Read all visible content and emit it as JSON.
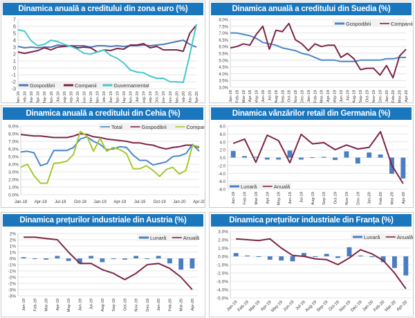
{
  "chart_data": [
    {
      "id": "euro",
      "type": "line",
      "title": "Dinamica anuală a creditului din zona euro (%)",
      "xlabel": "",
      "ylabel": "",
      "ylim": [
        -3,
        7
      ],
      "yticks": [
        7,
        6,
        5,
        4,
        3,
        2,
        1,
        0,
        -1,
        -2,
        -3
      ],
      "ytick_labels": [
        "7",
        "6",
        "5",
        "4",
        "3",
        "2",
        "1",
        "0",
        "-1",
        "-2",
        "-3"
      ],
      "grid": true,
      "legend": "bottom-left",
      "categories": [
        "Jan-18",
        "Feb-18",
        "Mar-18",
        "Apr-18",
        "May-18",
        "Jun-18",
        "Jul-18",
        "Aug-18",
        "Sep-18",
        "Oct-18",
        "Nov-18",
        "Dec-18",
        "Jan-19",
        "Feb-19",
        "Mar-19",
        "Apr-19",
        "May-19",
        "Jun-19",
        "Jul-19",
        "Aug-19",
        "Sep-19",
        "Oct-19",
        "Nov-19",
        "Dec-19",
        "Jan-20",
        "Feb-20",
        "Mar-20",
        "Apr-20"
      ],
      "series": [
        {
          "name": "Gospodării",
          "color": "#4a78b8",
          "values": [
            3.1,
            2.9,
            3.0,
            2.9,
            3.0,
            3.0,
            3.3,
            3.2,
            3.2,
            3.2,
            3.2,
            3.0,
            3.2,
            3.2,
            3.1,
            3.2,
            3.1,
            3.2,
            3.2,
            3.3,
            3.2,
            3.3,
            3.4,
            3.6,
            3.8,
            4.0,
            3.4,
            3.0
          ]
        },
        {
          "name": "Companii",
          "color": "#7b2346",
          "values": [
            2.3,
            2.1,
            2.3,
            2.5,
            2.9,
            2.6,
            3.0,
            3.1,
            3.2,
            2.9,
            3.0,
            2.9,
            2.3,
            2.6,
            2.5,
            2.8,
            2.7,
            3.3,
            3.3,
            3.5,
            2.9,
            3.1,
            2.6,
            2.6,
            2.6,
            2.4,
            5.0,
            6.2
          ]
        },
        {
          "name": "Guvernamental",
          "color": "#45c8c8",
          "values": [
            5.5,
            5.3,
            3.9,
            3.2,
            3.4,
            4.0,
            3.8,
            3.4,
            3.1,
            2.7,
            2.1,
            2.0,
            2.3,
            2.6,
            1.8,
            1.4,
            0.7,
            -0.3,
            -0.6,
            -0.7,
            -1.2,
            -1.5,
            -1.5,
            -2.0,
            -2.0,
            -2.1,
            1.9,
            6.3
          ]
        }
      ]
    },
    {
      "id": "suedia",
      "type": "line",
      "title": "Dinamica anuală a creditului din Suedia (%)",
      "xlabel": "",
      "ylabel": "",
      "ylim": [
        3.0,
        8.0
      ],
      "yticks": [
        8.0,
        7.5,
        7.0,
        6.5,
        6.0,
        5.5,
        5.0,
        4.5,
        4.0,
        3.5,
        3.0
      ],
      "ytick_labels": [
        "8.0%",
        "7.5%",
        "7.0%",
        "6.5%",
        "6.0%",
        "5.5%",
        "5.0%",
        "4.5%",
        "4.0%",
        "3.5%",
        "3.0%"
      ],
      "grid": true,
      "legend": "top-right",
      "categories": [
        "Jan-18",
        "Feb-18",
        "Mar-18",
        "Apr-18",
        "May-18",
        "Jun-18",
        "Jul-18",
        "Aug-18",
        "Sep-18",
        "Oct-18",
        "Nov-18",
        "Dec-18",
        "Jan-19",
        "Feb-19",
        "Mar-19",
        "Apr-19",
        "May-19",
        "Jun-19",
        "Jul-19",
        "Aug-19",
        "Sep-19",
        "Oct-19",
        "Nov-19",
        "Dec-19",
        "Jan-20",
        "Feb-20",
        "Mar-20",
        "Apr-20"
      ],
      "series": [
        {
          "name": "Gospodării",
          "color": "#4a86c8",
          "values": [
            7.0,
            7.0,
            6.9,
            6.8,
            6.6,
            6.3,
            6.2,
            6.1,
            5.9,
            5.8,
            5.7,
            5.5,
            5.4,
            5.2,
            5.0,
            5.0,
            5.0,
            4.9,
            4.9,
            4.9,
            5.0,
            5.0,
            5.0,
            5.0,
            5.1,
            5.1,
            5.2,
            5.2
          ]
        },
        {
          "name": "Companii",
          "color": "#7b2346",
          "values": [
            5.9,
            6.0,
            6.2,
            6.1,
            6.9,
            7.5,
            5.8,
            7.2,
            7.1,
            7.7,
            6.5,
            6.2,
            5.7,
            6.2,
            6.0,
            6.1,
            6.1,
            5.2,
            5.5,
            5.1,
            4.3,
            4.4,
            4.4,
            3.9,
            4.6,
            3.7,
            5.3,
            5.8
          ]
        }
      ]
    },
    {
      "id": "cehia",
      "type": "line",
      "title": "Dinamica anuală a creditului din Cehia (%)",
      "xlabel": "",
      "ylabel": "",
      "ylim": [
        0.0,
        9.0
      ],
      "yticks": [
        9,
        8,
        7,
        6,
        5,
        4,
        3,
        2,
        1,
        0
      ],
      "ytick_labels": [
        "9.0%",
        "8.0%",
        "7.0%",
        "6.0%",
        "5.0%",
        "4.0%",
        "3.0%",
        "2.0%",
        "1.0%",
        "0.0%"
      ],
      "grid": true,
      "legend": "top-right",
      "categories": [
        "Jan-18",
        "Feb-18",
        "Mar-18",
        "Apr-18",
        "May-18",
        "Jun-18",
        "Jul-18",
        "Aug-18",
        "Sep-18",
        "Oct-18",
        "Nov-18",
        "Dec-18",
        "Jan-19",
        "Feb-19",
        "Mar-19",
        "Apr-19",
        "May-19",
        "Jun-19",
        "Jul-19",
        "Aug-19",
        "Sep-19",
        "Oct-19",
        "Nov-19",
        "Dec-19",
        "Jan-20",
        "Feb-20",
        "Mar-20",
        "Apr-20"
      ],
      "xtick_labels": [
        "Jan-18",
        "",
        "",
        "Apr-18",
        "",
        "",
        "Jul-18",
        "",
        "",
        "Oct-18",
        "",
        "",
        "Jan-19",
        "",
        "",
        "Apr-19",
        "",
        "",
        "Jul-19",
        "",
        "",
        "Oct-19",
        "",
        "",
        "Jan-20",
        "",
        "",
        "Apr-20"
      ],
      "series": [
        {
          "name": "Total",
          "color": "#4a86c8",
          "values": [
            5.6,
            5.7,
            5.5,
            3.8,
            4.1,
            5.8,
            5.8,
            5.8,
            6.2,
            7.3,
            7.6,
            7.0,
            6.6,
            5.9,
            6.0,
            6.3,
            6.2,
            5.2,
            4.5,
            4.5,
            3.9,
            4.1,
            4.3,
            5.0,
            5.1,
            5.4,
            6.6,
            5.7
          ]
        },
        {
          "name": "Gospodării",
          "color": "#7b2346",
          "values": [
            7.9,
            7.8,
            7.7,
            7.7,
            7.6,
            7.5,
            7.5,
            7.5,
            7.7,
            8.0,
            7.9,
            7.6,
            7.5,
            7.3,
            7.2,
            7.1,
            7.0,
            6.8,
            6.8,
            6.6,
            6.5,
            6.2,
            6.0,
            6.2,
            6.3,
            6.5,
            6.5,
            6.2
          ]
        },
        {
          "name": "Companii",
          "color": "#a4c82e",
          "values": [
            3.6,
            4.0,
            2.5,
            1.5,
            1.5,
            4.1,
            4.2,
            4.4,
            5.3,
            8.3,
            7.7,
            5.7,
            7.4,
            5.7,
            6.2,
            5.9,
            5.4,
            3.4,
            3.4,
            3.8,
            3.2,
            2.4,
            3.3,
            3.6,
            2.7,
            3.2,
            6.5,
            6.3
          ]
        }
      ]
    },
    {
      "id": "germania",
      "type": "bar+line",
      "title": "Dinamica vânzărilor retail din Germania (%)",
      "xlabel": "",
      "ylabel": "",
      "ylim": [
        -8.0,
        8.0
      ],
      "yticks": [
        8,
        6,
        4,
        2,
        0,
        -2,
        -4,
        -6,
        -8
      ],
      "ytick_labels": [
        "8.0",
        "6.0",
        "4.0",
        "2.0",
        "0.0",
        "-2.0",
        "-4.0",
        "-6.0",
        "-8.0"
      ],
      "grid": true,
      "legend": "bottom-left",
      "categories": [
        "Jan-19",
        "Feb-19",
        "Mar-19",
        "Apr-19",
        "May-19",
        "Jun-19",
        "Jul-19",
        "Aug-19",
        "Sep-19",
        "Oct-19",
        "Nov-19",
        "Dec-19",
        "Jan-20",
        "Feb-20",
        "Mar-20",
        "Apr-20"
      ],
      "series": [
        {
          "name": "Lunară",
          "kind": "bar",
          "color": "#4a7ec0",
          "values": [
            1.7,
            0.4,
            0.2,
            -0.5,
            -0.5,
            1.8,
            -0.5,
            0.1,
            0.2,
            -0.6,
            1.6,
            -1.5,
            1.3,
            0.8,
            -4.1,
            -5.3
          ]
        },
        {
          "name": "Anuală",
          "kind": "line",
          "color": "#7b2346",
          "values": [
            3.6,
            4.7,
            -1.2,
            5.7,
            4.3,
            -1.3,
            5.9,
            3.5,
            3.8,
            2.0,
            3.2,
            2.2,
            2.6,
            6.6,
            -1.9,
            -6.6
          ]
        }
      ]
    },
    {
      "id": "austria",
      "type": "bar+line",
      "title": "Dinamica prețurilor industriale din Austria (%)",
      "xlabel": "",
      "ylabel": "",
      "ylim": [
        -3.0,
        2.0
      ],
      "yticks": [
        2.0,
        1.5,
        1.0,
        0.5,
        0,
        -0.5,
        -1.0,
        -1.5,
        -2.0,
        -2.5,
        -3.0
      ],
      "ytick_labels": [
        "2%",
        "2%",
        "1%",
        "1%",
        "0%",
        "-1%",
        "-1%",
        "-2%",
        "-2%",
        "-3%",
        "-3%"
      ],
      "grid": true,
      "legend": "top-right",
      "categories": [
        "Jan-19",
        "Feb-19",
        "Mar-19",
        "Apr-19",
        "May-19",
        "Jun-19",
        "Jul-19",
        "Aug-19",
        "Sep-19",
        "Oct-19",
        "Nov-19",
        "Dec-19",
        "Jan-20",
        "Feb-20",
        "Mar-20",
        "Apr-20"
      ],
      "series": [
        {
          "name": "Lunară",
          "kind": "bar",
          "color": "#4a7ec0",
          "values": [
            0.1,
            0.0,
            -0.1,
            0.2,
            -0.2,
            -0.4,
            0.2,
            -0.3,
            0.0,
            -0.1,
            0.2,
            0.0,
            0.2,
            -0.4,
            -0.9,
            -0.8
          ]
        },
        {
          "name": "Anuală",
          "kind": "line",
          "color": "#7b2346",
          "values": [
            1.7,
            1.7,
            1.6,
            1.5,
            0.5,
            -0.4,
            -0.4,
            -0.9,
            -1.2,
            -1.7,
            -1.2,
            -0.5,
            -0.4,
            -0.8,
            -1.5,
            -2.5
          ]
        }
      ]
    },
    {
      "id": "franta",
      "type": "bar+line",
      "title": "Dinamica prețurilor industriale din Franța (%)",
      "xlabel": "",
      "ylabel": "",
      "ylim": [
        -5.0,
        3.0
      ],
      "yticks": [
        3,
        2,
        1,
        0,
        -1,
        -2,
        -3,
        -4,
        -5
      ],
      "ytick_labels": [
        "3.0%",
        "2.0%",
        "1.0%",
        "0.0%",
        "-1.0%",
        "-2.0%",
        "-3.0%",
        "-4.0%",
        "-5.0%"
      ],
      "grid": true,
      "legend": "top-right",
      "categories": [
        "Jan-19",
        "Feb-19",
        "Mar-19",
        "Apr-19",
        "May-19",
        "Jun-19",
        "Jul-19",
        "Aug-19",
        "Sep-19",
        "Oct-19",
        "Nov-19",
        "Dec-19",
        "Jan-20",
        "Feb-20",
        "Mar-20",
        "Apr-20"
      ],
      "series": [
        {
          "name": "Lunară",
          "kind": "bar",
          "color": "#4a7ec0",
          "values": [
            0.4,
            0.1,
            0.0,
            -0.4,
            -0.5,
            -0.6,
            0.4,
            0.0,
            0.3,
            -0.2,
            1.1,
            0.1,
            -0.1,
            -0.7,
            -1.4,
            -2.3
          ]
        },
        {
          "name": "Anuală",
          "kind": "line",
          "color": "#7b2346",
          "values": [
            2.1,
            2.0,
            1.9,
            2.1,
            1.0,
            0.1,
            0.0,
            -0.3,
            -0.4,
            -1.0,
            -0.2,
            0.8,
            0.3,
            -0.5,
            -2.0,
            -3.9
          ]
        }
      ]
    }
  ]
}
